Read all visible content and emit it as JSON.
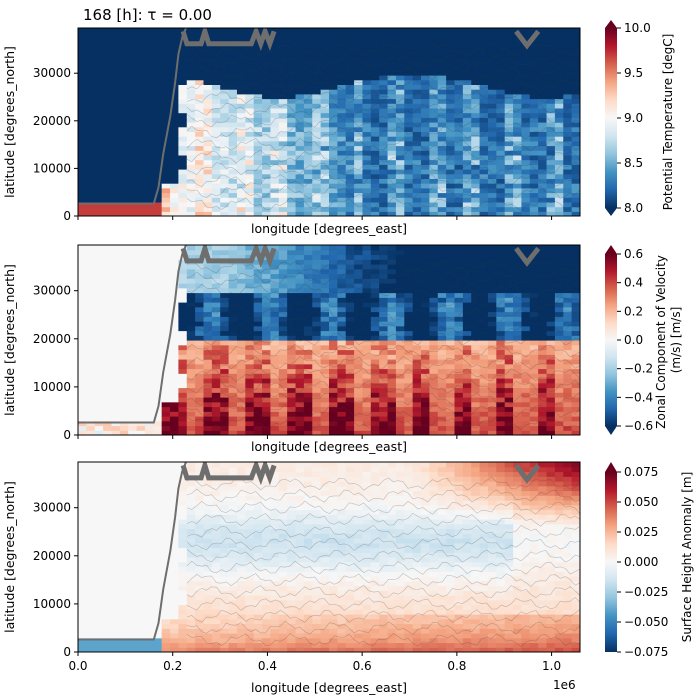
{
  "title": "168 [h]: τ = 0.00",
  "chart_data": [
    {
      "type": "heatmap",
      "id": "potential-temperature",
      "variable_label": "Potential Temperature [degC]",
      "xlabel": "longitude [degrees_east]",
      "ylabel": "latitude [degrees_north]",
      "colormap": "RdBu_r",
      "xlim": [
        0,
        1060000
      ],
      "ylim": [
        0,
        39500
      ],
      "vmin": 8.0,
      "vmax": 10.0,
      "colorbar_ticks": [
        8.0,
        8.5,
        9.0,
        9.5,
        10.0
      ],
      "colorbar_tick_labels": [
        "8.0",
        "8.5",
        "9.0",
        "9.5",
        "10.0"
      ],
      "colorbar_extend": "both",
      "y_ticks": [
        0,
        10000,
        20000,
        30000
      ],
      "y_tick_labels": [
        "0",
        "10000",
        "20000",
        "30000"
      ],
      "x_tick_labels_shown": false,
      "notes_regions": [
        {
          "region": "west basin x<175000, y<2500",
          "value": 9.7
        },
        {
          "region": "west basin x<175000, y>2500",
          "value": 8.0
        },
        {
          "region": "main basin, y 2500–27000",
          "value_range": [
            8.0,
            9.2
          ]
        },
        {
          "region": "main basin, y>27000",
          "value": 8.0
        }
      ]
    },
    {
      "type": "heatmap",
      "id": "zonal-velocity",
      "variable_label": "Zonal Component of Velocity (m/s) [m/s]",
      "xlabel": "longitude [degrees_east]",
      "ylabel": "latitude [degrees_north]",
      "colormap": "RdBu_r",
      "xlim": [
        0,
        1060000
      ],
      "ylim": [
        0,
        39500
      ],
      "vmin": -0.6,
      "vmax": 0.6,
      "colorbar_ticks": [
        -0.6,
        -0.4,
        -0.2,
        0.0,
        0.2,
        0.4,
        0.6
      ],
      "colorbar_tick_labels": [
        "−0.6",
        "−0.4",
        "−0.2",
        "0.0",
        "0.2",
        "0.4",
        "0.6"
      ],
      "colorbar_extend": "both",
      "y_ticks": [
        0,
        10000,
        20000,
        30000
      ],
      "y_tick_labels": [
        "0",
        "10000",
        "20000",
        "30000"
      ],
      "x_tick_labels_shown": false,
      "notes_regions": [
        {
          "region": "main basin, y<20000",
          "value_range": [
            0.2,
            0.6
          ]
        },
        {
          "region": "main basin, y 20000–30000",
          "value_range": [
            -0.4,
            -0.6
          ]
        },
        {
          "region": "main basin, y>30000",
          "value_range": [
            -0.2,
            -0.6
          ]
        }
      ]
    },
    {
      "type": "heatmap",
      "id": "surface-height-anomaly",
      "variable_label": "Surface Height Anomaly [m]",
      "xlabel": "longitude [degrees_east]",
      "ylabel": "latitude [degrees_north]",
      "colormap": "RdBu_r",
      "xlim": [
        0,
        1060000
      ],
      "ylim": [
        0,
        39500
      ],
      "vmin": -0.075,
      "vmax": 0.075,
      "colorbar_ticks": [
        -0.075,
        -0.05,
        -0.025,
        0.0,
        0.025,
        0.05,
        0.075
      ],
      "colorbar_tick_labels": [
        "−0.075",
        "−0.050",
        "−0.025",
        "0.000",
        "0.025",
        "0.050",
        "0.075"
      ],
      "colorbar_extend": "max",
      "y_ticks": [
        0,
        10000,
        20000,
        30000
      ],
      "y_tick_labels": [
        "0",
        "10000",
        "20000",
        "30000"
      ],
      "x_ticks": [
        0,
        200000,
        400000,
        600000,
        800000,
        1000000
      ],
      "x_tick_labels": [
        "0.0",
        "0.2",
        "0.4",
        "0.6",
        "0.8",
        "1.0"
      ],
      "x_offset_text": "1e6",
      "notes_regions": [
        {
          "region": "main basin, y<10000",
          "value_range": [
            0.01,
            0.04
          ]
        },
        {
          "region": "main basin, y 15000–30000",
          "value_range": [
            -0.03,
            0.0
          ]
        },
        {
          "region": "north-east corner",
          "value_range": [
            0.04,
            0.075
          ]
        }
      ]
    }
  ]
}
